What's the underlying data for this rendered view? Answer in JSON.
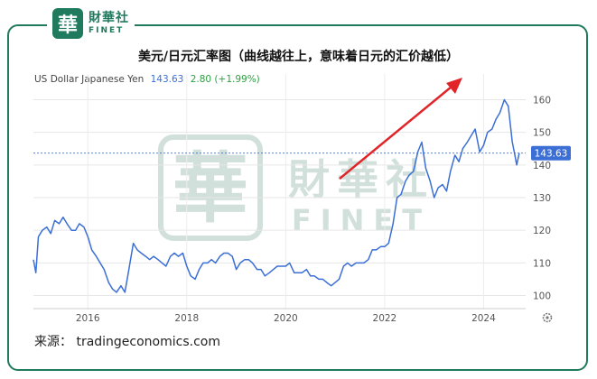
{
  "logo": {
    "seal": "華",
    "cn": "財華社",
    "en": "FINET"
  },
  "title": "美元/日元汇率图（曲线越往上，意味着日元的汇价越低）",
  "source": "来源： tradingeconomics.com",
  "watermark": {
    "seal": "華",
    "cn": "財華社",
    "en": "FINET"
  },
  "colors": {
    "line": "#3b6fd6",
    "border": "#1f7a5e",
    "arrow": "#e0242a",
    "change": "#2ea043",
    "watermark": "#7fa89a"
  },
  "chart_data": {
    "type": "line",
    "legend": {
      "name": "US Dollar Japanese Yen",
      "value": "143.63",
      "change": "2.80 (+1.99%)"
    },
    "current_label": "143.63",
    "current_value": 143.63,
    "x_ticks": [
      "2016",
      "2018",
      "2020",
      "2022",
      "2024"
    ],
    "x_tick_values": [
      2016,
      2018,
      2020,
      2022,
      2024
    ],
    "y_ticks": [
      "100",
      "110",
      "120",
      "130",
      "140",
      "150",
      "160"
    ],
    "y_tick_values": [
      100,
      110,
      120,
      130,
      140,
      150,
      160
    ],
    "xlim": [
      2014.9,
      2024.85
    ],
    "ylim": [
      96,
      164
    ],
    "grid": true,
    "series": [
      {
        "name": "US Dollar Japanese Yen",
        "x": [
          2014.9,
          2014.95,
          2015.0,
          2015.08,
          2015.17,
          2015.25,
          2015.33,
          2015.42,
          2015.5,
          2015.58,
          2015.67,
          2015.75,
          2015.83,
          2015.92,
          2016.0,
          2016.08,
          2016.17,
          2016.25,
          2016.33,
          2016.42,
          2016.5,
          2016.58,
          2016.67,
          2016.75,
          2016.83,
          2016.92,
          2017.0,
          2017.08,
          2017.17,
          2017.25,
          2017.33,
          2017.42,
          2017.5,
          2017.58,
          2017.67,
          2017.75,
          2017.83,
          2017.92,
          2018.0,
          2018.08,
          2018.17,
          2018.25,
          2018.33,
          2018.42,
          2018.5,
          2018.58,
          2018.67,
          2018.75,
          2018.83,
          2018.92,
          2019.0,
          2019.08,
          2019.17,
          2019.25,
          2019.33,
          2019.42,
          2019.5,
          2019.58,
          2019.67,
          2019.75,
          2019.83,
          2019.92,
          2020.0,
          2020.08,
          2020.17,
          2020.25,
          2020.33,
          2020.42,
          2020.5,
          2020.58,
          2020.67,
          2020.75,
          2020.83,
          2020.92,
          2021.0,
          2021.08,
          2021.17,
          2021.25,
          2021.33,
          2021.42,
          2021.5,
          2021.58,
          2021.67,
          2021.75,
          2021.83,
          2021.92,
          2022.0,
          2022.08,
          2022.17,
          2022.25,
          2022.33,
          2022.42,
          2022.5,
          2022.58,
          2022.67,
          2022.75,
          2022.83,
          2022.92,
          2023.0,
          2023.08,
          2023.17,
          2023.25,
          2023.33,
          2023.42,
          2023.5,
          2023.58,
          2023.67,
          2023.75,
          2023.83,
          2023.92,
          2024.0,
          2024.08,
          2024.17,
          2024.25,
          2024.33,
          2024.42,
          2024.5,
          2024.58,
          2024.62,
          2024.67,
          2024.72
        ],
        "values": [
          111,
          107,
          118,
          120,
          121,
          119,
          123,
          122,
          124,
          122,
          120,
          120,
          122,
          121,
          118,
          114,
          112,
          110,
          108,
          104,
          102,
          101,
          103,
          101,
          108,
          116,
          114,
          113,
          112,
          111,
          112,
          111,
          110,
          109,
          112,
          113,
          112,
          113,
          109,
          106,
          105,
          108,
          110,
          110,
          111,
          110,
          112,
          113,
          113,
          112,
          108,
          110,
          111,
          111,
          110,
          108,
          108,
          106,
          107,
          108,
          109,
          109,
          109,
          110,
          107,
          107,
          107,
          108,
          106,
          106,
          105,
          105,
          104,
          103,
          104,
          105,
          109,
          110,
          109,
          110,
          110,
          110,
          111,
          114,
          114,
          115,
          115,
          116,
          122,
          130,
          131,
          135,
          137,
          138,
          144,
          147,
          139,
          135,
          130,
          133,
          134,
          132,
          138,
          143,
          141,
          145,
          147,
          149,
          151,
          144,
          146,
          150,
          151,
          154,
          156,
          160,
          158,
          147,
          144,
          140,
          143.63
        ]
      }
    ]
  }
}
